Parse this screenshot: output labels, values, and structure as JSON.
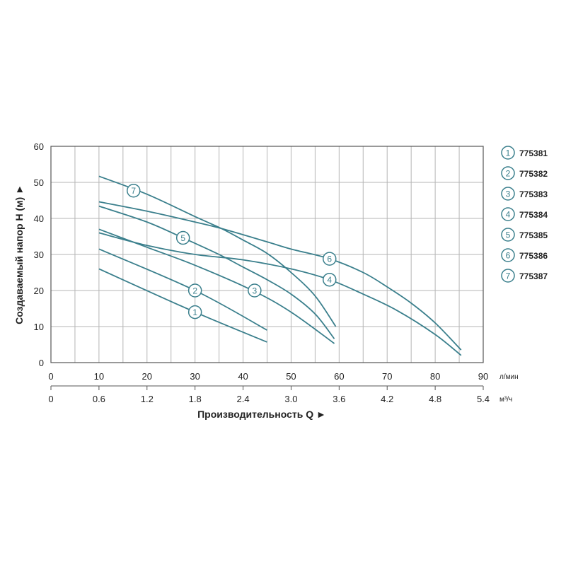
{
  "chart_data": {
    "type": "line",
    "xlabel": "Производительность Q ►",
    "ylabel": "Создаваемый напор H (м) ►",
    "xlim": [
      0,
      90
    ],
    "ylim": [
      0,
      60
    ],
    "grid": true,
    "x_ticks": [
      "0",
      "10",
      "20",
      "30",
      "40",
      "50",
      "60",
      "70",
      "80",
      "90"
    ],
    "x_unit": "л/мин",
    "x2_ticks": [
      "0",
      "0.6",
      "1.2",
      "1.8",
      "2.4",
      "3.0",
      "3.6",
      "4.2",
      "4.8",
      "5.4"
    ],
    "x2_unit": "м³/ч",
    "y_ticks": [
      "0",
      "10",
      "20",
      "30",
      "40",
      "50",
      "60"
    ],
    "legend_position": "right",
    "series_color": "#3a7f8c",
    "series": [
      {
        "marker": "1",
        "name": "775381",
        "x": [
          10,
          30,
          45
        ],
        "y": [
          26,
          14,
          5.7
        ]
      },
      {
        "marker": "2",
        "name": "775382",
        "x": [
          10,
          30,
          45
        ],
        "y": [
          31.5,
          20,
          9
        ]
      },
      {
        "marker": "3",
        "name": "775383",
        "x": [
          10,
          20,
          30,
          42,
          50,
          59
        ],
        "y": [
          37,
          32,
          27,
          20,
          14,
          5.3
        ]
      },
      {
        "marker": "4",
        "name": "775384",
        "x": [
          10,
          20,
          30,
          40,
          50,
          58,
          65,
          72,
          80,
          85.4
        ],
        "y": [
          36,
          32.5,
          30,
          28.5,
          26,
          23,
          19,
          14.5,
          7.8,
          2
        ]
      },
      {
        "marker": "5",
        "name": "775385",
        "x": [
          10,
          20,
          27.5,
          35,
          40,
          45,
          50,
          55,
          59
        ],
        "y": [
          43.4,
          39,
          34.6,
          30,
          26.5,
          23,
          19,
          13.5,
          6.6
        ]
      },
      {
        "marker": "6",
        "name": "775386",
        "x": [
          10,
          20,
          30,
          35.5,
          45,
          50,
          58,
          65,
          70,
          75,
          80,
          85.4
        ],
        "y": [
          44.6,
          42,
          39,
          37.2,
          33.5,
          31.5,
          28.8,
          25,
          21,
          16.5,
          11,
          3.5
        ]
      },
      {
        "marker": "7",
        "name": "775387",
        "x": [
          10,
          20,
          30,
          35.5,
          40,
          45,
          50,
          55,
          59.3
        ],
        "y": [
          51.7,
          46.7,
          40.5,
          37.2,
          34,
          30.3,
          25,
          18.5,
          10
        ]
      }
    ]
  }
}
